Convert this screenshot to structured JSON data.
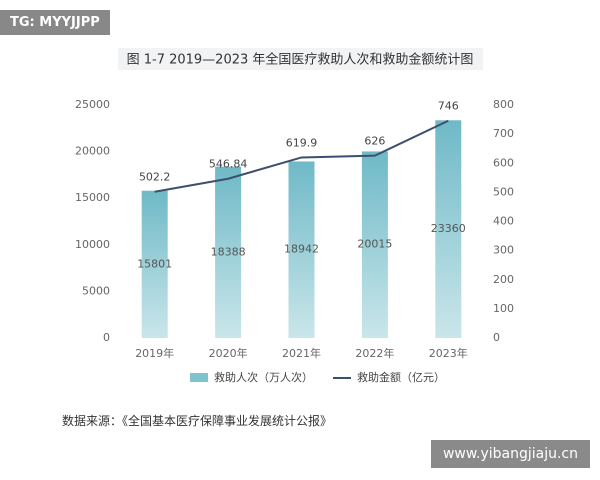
{
  "chart_data": {
    "type": "bar",
    "title": "图 1-7  2019—2023 年全国医疗救助人次和救助金额统计图",
    "categories": [
      "2019年",
      "2020年",
      "2021年",
      "2022年",
      "2023年"
    ],
    "series": [
      {
        "name": "救助人次（万人次）",
        "type": "bar",
        "color": "#7fc3cf",
        "values": [
          15801,
          18388,
          18942,
          20015,
          23360
        ]
      },
      {
        "name": "救助金额（亿元）",
        "type": "line",
        "axis": "y2",
        "color": "#3d4f6b",
        "values": [
          502.2,
          546.84,
          619.9,
          626,
          746
        ]
      }
    ],
    "ylim": [
      0,
      25000
    ],
    "yticks": [
      0,
      5000,
      10000,
      15000,
      20000,
      25000
    ],
    "y2lim": [
      0,
      800
    ],
    "y2ticks": [
      0,
      100,
      200,
      300,
      400,
      500,
      600,
      700,
      800
    ],
    "grid": false,
    "annotations": {
      "badge": "TG: MYYJJPP",
      "source": "数据来源：《全国基本医疗保障事业发展统计公报》",
      "website": "www.yibangjiaju.cn"
    }
  }
}
